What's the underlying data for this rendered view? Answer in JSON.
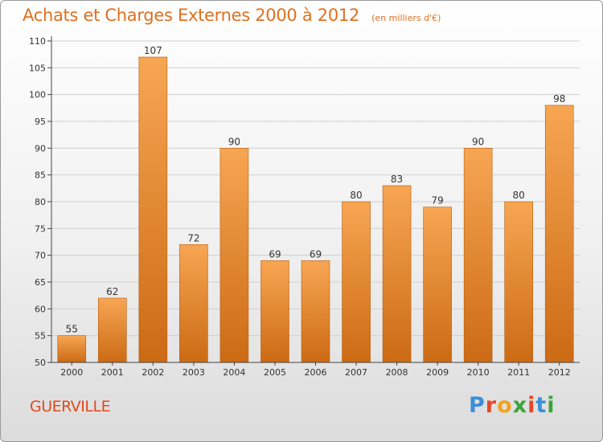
{
  "header": {
    "title": "Achats et Charges Externes 2000 à 2012",
    "unit": "(en milliers d'€)"
  },
  "footer": {
    "commune": "GUERVILLE",
    "brand": "Proxiti",
    "brand_colors": [
      "#3a8fd8",
      "#e8472a",
      "#f2a21c",
      "#3aa53a",
      "#e8472a",
      "#3a8fd8",
      "#3aa53a"
    ]
  },
  "colors": {
    "title": "#e07020",
    "bar_light": "#f7a653",
    "bar_dark": "#cc6a14",
    "bar_edge": "#b85d10",
    "axis": "#444444",
    "grid": "#cfcfcf"
  },
  "chart_data": {
    "type": "bar",
    "categories": [
      "2000",
      "2001",
      "2002",
      "2003",
      "2004",
      "2005",
      "2006",
      "2007",
      "2008",
      "2009",
      "2010",
      "2011",
      "2012"
    ],
    "values": [
      55,
      62,
      107,
      72,
      90,
      69,
      69,
      80,
      83,
      79,
      90,
      80,
      98
    ],
    "ylim": [
      50,
      110
    ],
    "yticks": [
      50,
      55,
      60,
      65,
      70,
      75,
      80,
      85,
      90,
      95,
      100,
      105,
      110
    ],
    "grid": true,
    "data_labels": true
  }
}
